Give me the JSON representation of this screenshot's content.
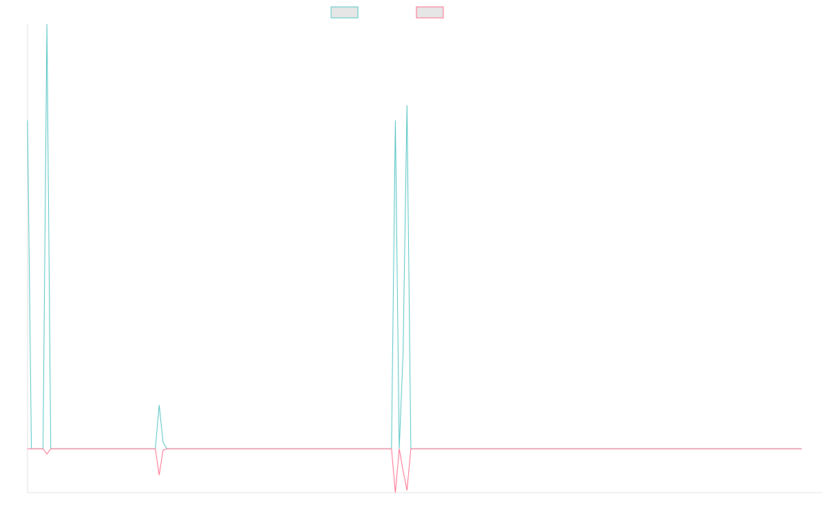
{
  "chart_data": {
    "type": "line",
    "x_count": 200,
    "ylim": [
      -10,
      97
    ],
    "grid": false,
    "legend_placement": "top-center",
    "series": [
      {
        "color": "#4bc0c0",
        "legend_fill": "#e6e6e6",
        "values": [
          75,
          0,
          0,
          0,
          0,
          97,
          0,
          0,
          0,
          0,
          0,
          0,
          0,
          0,
          0,
          0,
          0,
          0,
          0,
          0,
          0,
          0,
          0,
          0,
          0,
          0,
          0,
          0,
          0,
          0,
          0,
          0,
          0,
          0,
          10,
          1.5,
          0,
          0,
          0,
          0,
          0,
          0,
          0,
          0,
          0,
          0,
          0,
          0,
          0,
          0,
          0,
          0,
          0,
          0,
          0,
          0,
          0,
          0,
          0,
          0,
          0,
          0,
          0,
          0,
          0,
          0,
          0,
          0,
          0,
          0,
          0,
          0,
          0,
          0,
          0,
          0,
          0,
          0,
          0,
          0,
          0,
          0,
          0,
          0,
          0,
          0,
          0,
          0,
          0,
          0,
          0,
          0,
          0,
          0,
          0,
          75,
          0,
          22,
          78.5,
          0,
          0,
          0,
          0,
          0,
          0,
          0,
          0,
          0,
          0,
          0,
          0,
          0,
          0,
          0,
          0,
          0,
          0,
          0,
          0,
          0,
          0,
          0,
          0,
          0,
          0,
          0,
          0,
          0,
          0,
          0,
          0,
          0,
          0,
          0,
          0,
          0,
          0,
          0,
          0,
          0,
          0,
          0,
          0,
          0,
          0,
          0,
          0,
          0,
          0,
          0,
          0,
          0,
          0,
          0,
          0,
          0,
          0,
          0,
          0,
          0,
          0,
          0,
          0,
          0,
          0,
          0,
          0,
          0,
          0,
          0,
          0,
          0,
          0,
          0,
          0,
          0,
          0,
          0,
          0,
          0,
          0,
          0,
          0,
          0,
          0,
          0,
          0,
          0,
          0,
          0,
          0,
          0,
          0,
          0,
          0,
          0,
          0,
          0,
          0,
          0,
          0
        ]
      },
      {
        "color": "#ff6384",
        "legend_fill": "#e6e6e6",
        "values": [
          0,
          0,
          0,
          0,
          0,
          -1.2,
          0,
          0,
          0,
          0,
          0,
          0,
          0,
          0,
          0,
          0,
          0,
          0,
          0,
          0,
          0,
          0,
          0,
          0,
          0,
          0,
          0,
          0,
          0,
          0,
          0,
          0,
          0,
          0,
          -6,
          -0.3,
          0,
          0,
          0,
          0,
          0,
          0,
          0,
          0,
          0,
          0,
          0,
          0,
          0,
          0,
          0,
          0,
          0,
          0,
          0,
          0,
          0,
          0,
          0,
          0,
          0,
          0,
          0,
          0,
          0,
          0,
          0,
          0,
          0,
          0,
          0,
          0,
          0,
          0,
          0,
          0,
          0,
          0,
          0,
          0,
          0,
          0,
          0,
          0,
          0,
          0,
          0,
          0,
          0,
          0,
          0,
          0,
          0,
          0,
          0,
          -10,
          0,
          -5,
          -9.5,
          0,
          0,
          0,
          0,
          0,
          0,
          0,
          0,
          0,
          0,
          0,
          0,
          0,
          0,
          0,
          0,
          0,
          0,
          0,
          0,
          0,
          0,
          0,
          0,
          0,
          0,
          0,
          0,
          0,
          0,
          0,
          0,
          0,
          0,
          0,
          0,
          0,
          0,
          0,
          0,
          0,
          0,
          0,
          0,
          0,
          0,
          0,
          0,
          0,
          0,
          0,
          0,
          0,
          0,
          0,
          0,
          0,
          0,
          0,
          0,
          0,
          0,
          0,
          0,
          0,
          0,
          0,
          0,
          0,
          0,
          0,
          0,
          0,
          0,
          0,
          0,
          0,
          0,
          0,
          0,
          0,
          0,
          0,
          0,
          0,
          0,
          0,
          0,
          0,
          0,
          0,
          0,
          0,
          0,
          0,
          0,
          0,
          0,
          0,
          0,
          0,
          0
        ]
      }
    ]
  }
}
